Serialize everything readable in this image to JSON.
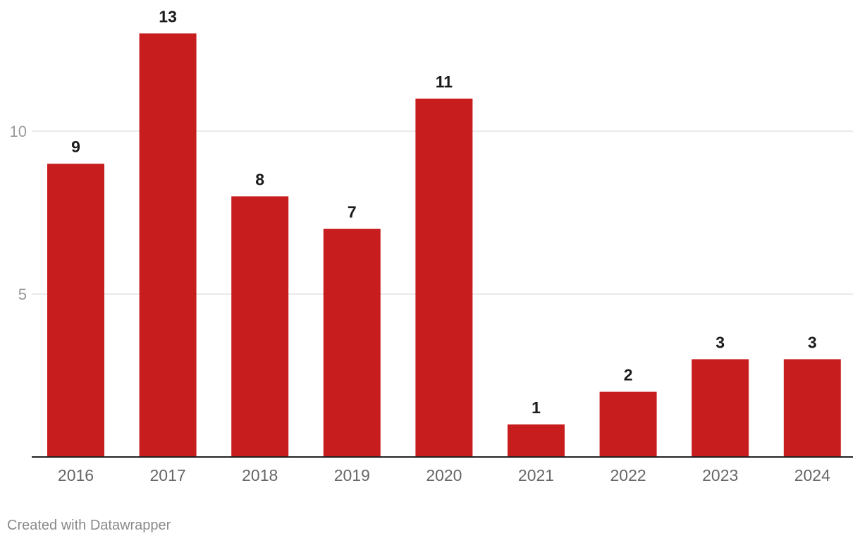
{
  "chart_data": {
    "type": "bar",
    "categories": [
      "2016",
      "2017",
      "2018",
      "2019",
      "2020",
      "2021",
      "2022",
      "2023",
      "2024"
    ],
    "values": [
      9,
      13,
      8,
      7,
      11,
      1,
      2,
      3,
      3
    ],
    "ylim": [
      0,
      14
    ],
    "yticks": [
      5,
      10
    ],
    "grid": true,
    "data_labels": true,
    "bar_color": "#c81d1e"
  },
  "footer": {
    "credit": "Created with Datawrapper"
  }
}
